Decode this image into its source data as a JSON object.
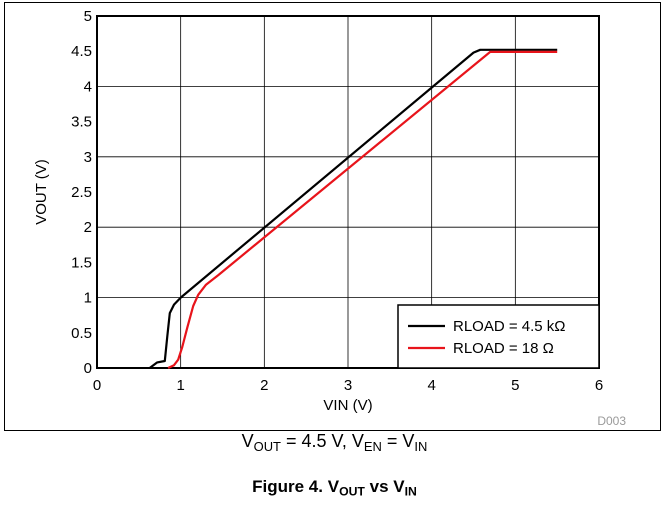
{
  "chart_data": {
    "type": "line",
    "xlabel": "VIN (V)",
    "ylabel": "VOUT (V)",
    "xlim": [
      0,
      6
    ],
    "ylim": [
      0,
      5
    ],
    "xticks": [
      0,
      1,
      2,
      3,
      4,
      5,
      6
    ],
    "yticks": [
      0,
      0.5,
      1,
      1.5,
      2,
      2.5,
      3,
      3.5,
      4,
      4.5,
      5
    ],
    "xtick_labels": [
      "0",
      "1",
      "2",
      "3",
      "4",
      "5",
      "6"
    ],
    "ytick_labels": [
      "0",
      "0.5",
      "1",
      "1.5",
      "2",
      "2.5",
      "3",
      "3.5",
      "4",
      "4.5",
      "5"
    ],
    "grid": true,
    "legend_position": "bottom-right",
    "code": "D003",
    "series": [
      {
        "name": "RLOAD = 4.5 kΩ",
        "color": "#000000",
        "x": [
          0.63,
          0.72,
          0.81,
          0.84,
          0.87,
          0.92,
          1.0,
          4.5,
          4.58,
          5.5
        ],
        "y": [
          0.0,
          0.08,
          0.1,
          0.45,
          0.78,
          0.9,
          1.0,
          4.48,
          4.52,
          4.52
        ]
      },
      {
        "name": "RLOAD = 18 Ω",
        "color": "#e8141b",
        "x": [
          0.85,
          0.92,
          0.97,
          1.02,
          1.08,
          1.15,
          1.21,
          1.3,
          1.45,
          4.7,
          5.5
        ],
        "y": [
          0.0,
          0.04,
          0.12,
          0.3,
          0.58,
          0.88,
          1.04,
          1.18,
          1.32,
          4.49,
          4.49
        ]
      }
    ]
  },
  "conditions": {
    "vout": "V",
    "vout_sub": "OUT",
    "vout_value": " = 4.5 V, ",
    "ven": "V",
    "ven_sub": "EN",
    "eq": " = ",
    "vin": "V",
    "vin_sub": "IN"
  },
  "caption": {
    "prefix": "Figure 4. ",
    "v1": "V",
    "v1_sub": "OUT",
    "mid": " vs ",
    "v2": "V",
    "v2_sub": "IN"
  }
}
